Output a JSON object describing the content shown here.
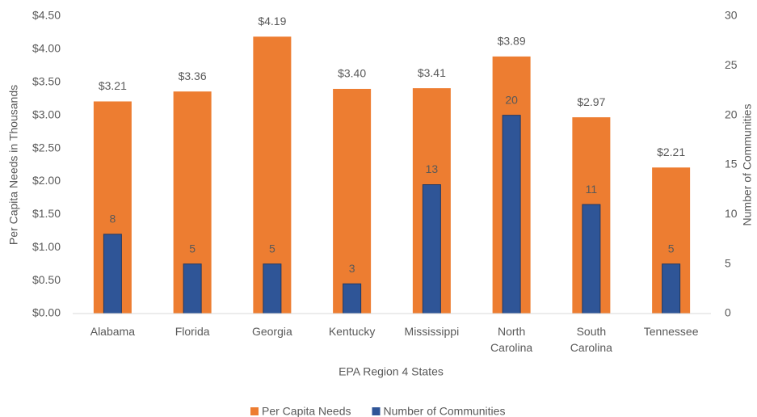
{
  "chart_data": {
    "type": "bar",
    "x_label": "EPA Region 4 States",
    "y_label": "Per Capita Needs in Thousands",
    "y2_label": "Number of Communities",
    "categories": [
      "Alabama",
      "Florida",
      "Georgia",
      "Kentucky",
      "Mississippi",
      "North Carolina",
      "South Carolina",
      "Tennessee"
    ],
    "series": [
      {
        "name": "Per Capita Needs",
        "color": "#ed7d31",
        "values": [
          3.21,
          3.36,
          4.19,
          3.4,
          3.41,
          3.89,
          2.97,
          2.21
        ],
        "value_labels": [
          "$3.21",
          "$3.36",
          "$4.19",
          "$3.40",
          "$3.41",
          "$3.89",
          "$2.97",
          "$2.21"
        ]
      },
      {
        "name": "Number of Communities",
        "color": "#2f5597",
        "axis": "y2",
        "values": [
          8,
          5,
          5,
          3,
          13,
          20,
          11,
          5
        ]
      }
    ],
    "ylim": [
      0,
      4.5
    ],
    "yticks": [
      {
        "value": 0,
        "label": "$0.00"
      },
      {
        "value": 0.5,
        "label": "$0.50"
      },
      {
        "value": 1,
        "label": "$1.00"
      },
      {
        "value": 1.5,
        "label": "$1.50"
      },
      {
        "value": 2,
        "label": "$2.00"
      },
      {
        "value": 2.5,
        "label": "$2.50"
      },
      {
        "value": 3,
        "label": "$3.00"
      },
      {
        "value": 3.5,
        "label": "$3.50"
      },
      {
        "value": 4,
        "label": "$4.00"
      },
      {
        "value": 4.5,
        "label": "$4.50"
      }
    ],
    "y2lim": [
      0,
      30
    ],
    "y2ticks": [
      0,
      5,
      10,
      15,
      20,
      25,
      30
    ],
    "grid": false,
    "legend": "bottom"
  }
}
